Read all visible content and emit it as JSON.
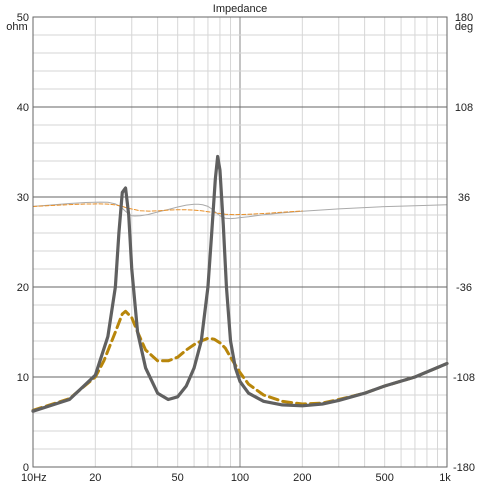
{
  "chart_data": {
    "type": "line",
    "title": "Impedance",
    "left_axis": {
      "unit": "ohm",
      "range": [
        0,
        50
      ],
      "ticks": [
        0,
        10,
        20,
        30,
        40,
        50
      ],
      "tick_labels": [
        "0",
        "10",
        "20",
        "30",
        "40",
        "50"
      ]
    },
    "right_axis": {
      "unit": "deg",
      "range": [
        -180,
        180
      ],
      "ticks": [
        -180,
        -108,
        -36,
        36,
        108,
        180
      ],
      "tick_labels": [
        "-180",
        "-108",
        "-36",
        "36",
        "108",
        "180"
      ]
    },
    "x_axis": {
      "scale": "log",
      "range": [
        10,
        1000
      ],
      "labeled_ticks": [
        10,
        20,
        50,
        100,
        200,
        500,
        1000
      ],
      "tick_labels": [
        "10Hz",
        "20",
        "50",
        "100",
        "200",
        "500",
        "1k"
      ]
    },
    "grid": true,
    "series": [
      {
        "axis": "left",
        "color": "#606060",
        "style": "solid-thick",
        "x": [
          10,
          15,
          20,
          23,
          25,
          26,
          27,
          28,
          29,
          30,
          32,
          35,
          40,
          45,
          50,
          55,
          60,
          65,
          70,
          73,
          76,
          78,
          80,
          83,
          86,
          90,
          95,
          100,
          110,
          130,
          160,
          200,
          250,
          300,
          400,
          500,
          700,
          1000
        ],
        "y": [
          6.2,
          7.5,
          10.2,
          14.5,
          20,
          26,
          30.5,
          31,
          28,
          22,
          15,
          11,
          8.2,
          7.5,
          7.8,
          9,
          11,
          14,
          20,
          26,
          32,
          34.5,
          33,
          27,
          20,
          14,
          11,
          9.5,
          8.2,
          7.3,
          6.9,
          6.8,
          7,
          7.4,
          8.2,
          9,
          10,
          11.5
        ]
      },
      {
        "axis": "left",
        "color": "#b8860b",
        "style": "dashed-thick",
        "x": [
          10,
          15,
          20,
          22,
          25,
          27,
          28,
          30,
          32,
          35,
          40,
          45,
          50,
          55,
          60,
          65,
          70,
          75,
          80,
          85,
          90,
          100,
          110,
          130,
          160,
          200,
          250,
          300,
          400,
          500,
          700,
          1000
        ],
        "y": [
          6.3,
          7.6,
          10,
          11.8,
          15,
          17,
          17.3,
          16.6,
          15,
          13,
          11.8,
          11.8,
          12.2,
          13,
          13.6,
          14,
          14.3,
          14.2,
          13.8,
          13.2,
          12.2,
          10.5,
          9.2,
          8,
          7.3,
          7,
          7.1,
          7.5,
          8.2,
          9,
          10,
          11.5
        ]
      },
      {
        "axis": "right",
        "color": "#aaaaaa",
        "style": "solid-thin",
        "x": [
          10,
          12,
          15,
          18,
          21,
          23,
          25,
          26,
          27,
          28,
          29,
          30,
          31,
          33,
          36,
          40,
          45,
          50,
          55,
          60,
          63,
          66,
          70,
          73,
          76,
          80,
          85,
          90,
          95,
          100,
          110,
          130,
          160,
          200,
          300,
          500,
          700,
          1000
        ],
        "y": [
          28.5,
          29.5,
          30.8,
          31.6,
          31.9,
          31.8,
          30.5,
          29,
          27,
          24.5,
          22.5,
          21,
          20.8,
          21,
          22,
          24,
          26,
          28,
          29.5,
          30.2,
          30.2,
          29.8,
          28.5,
          26.5,
          24,
          21,
          19,
          18.7,
          19,
          19.5,
          20.2,
          21.8,
          23.3,
          24.6,
          26.5,
          28.3,
          29,
          29.8
        ]
      },
      {
        "axis": "right",
        "color": "#e8902a",
        "style": "dashed-thin",
        "x": [
          10,
          12,
          15,
          18,
          21,
          23,
          25,
          27,
          28,
          30,
          33,
          36,
          40,
          45,
          50,
          55,
          60,
          65,
          70,
          75,
          80,
          85,
          90,
          95,
          100,
          110,
          130,
          160,
          200
        ],
        "y": [
          28.4,
          29.1,
          29.9,
          30.4,
          30.5,
          30.3,
          29.7,
          28.5,
          27.6,
          26.4,
          25,
          24.7,
          24.9,
          25.5,
          25.8,
          25.8,
          25.5,
          25,
          24.2,
          23.5,
          22.8,
          22.2,
          22,
          21.9,
          22,
          22.2,
          22.8,
          23.8,
          24.8
        ]
      }
    ]
  }
}
